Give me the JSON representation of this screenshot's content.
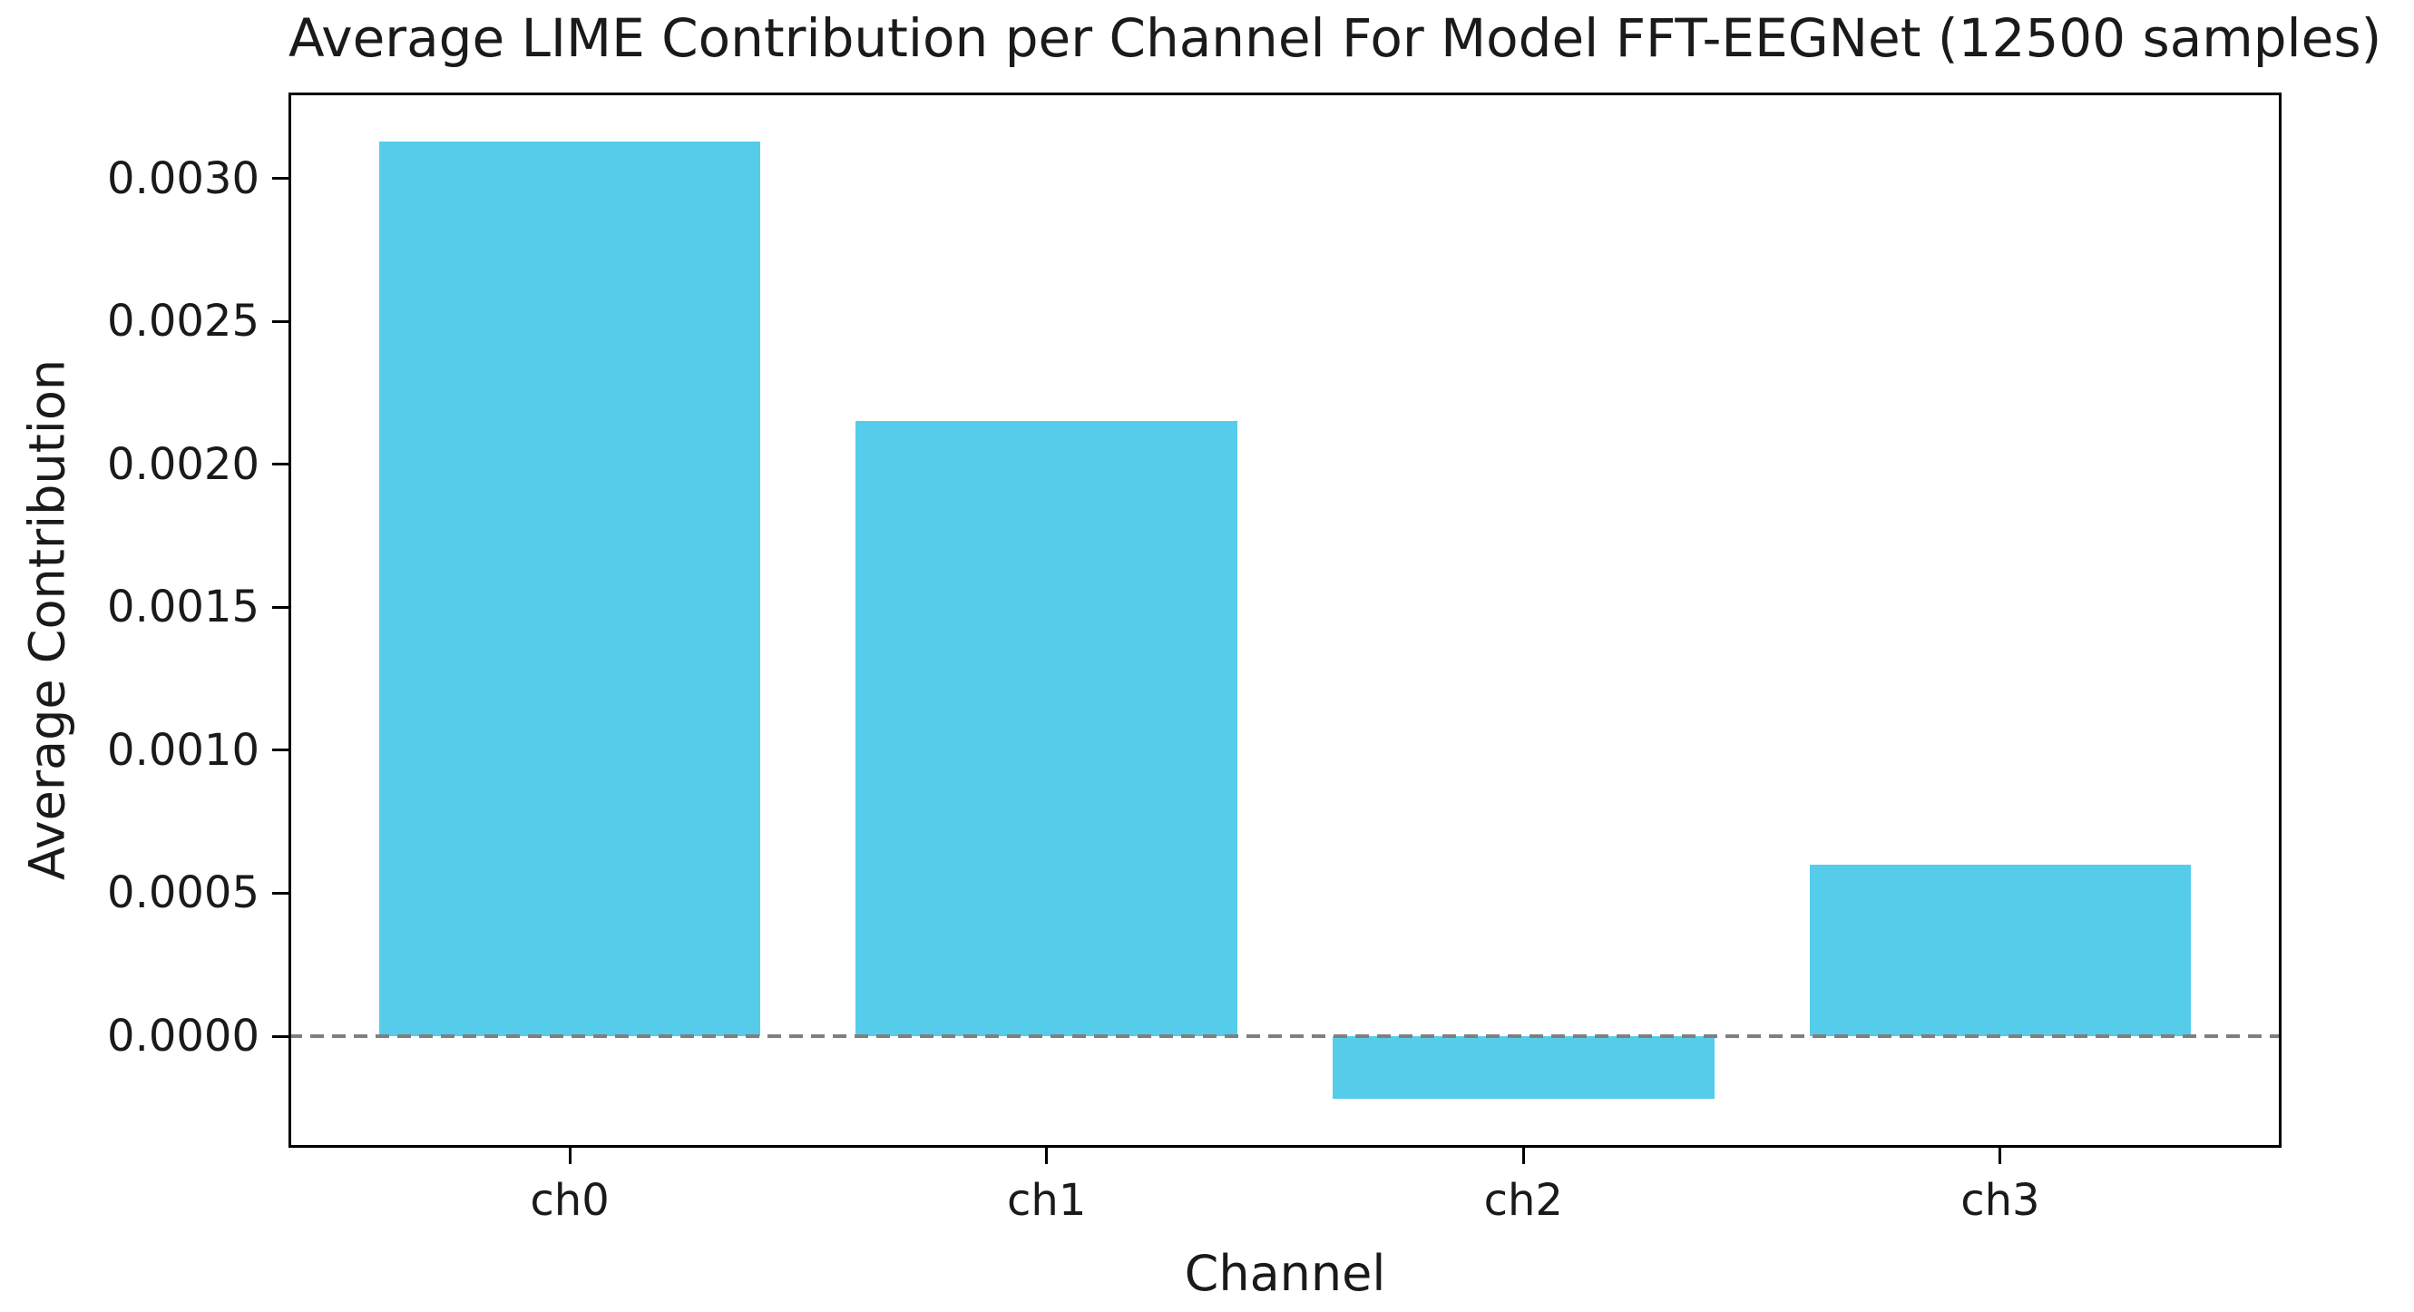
{
  "chart_data": {
    "type": "bar",
    "title": "Average LIME Contribution per Channel For Model FFT-EEGNet (12500 samples)",
    "xlabel": "Channel",
    "ylabel": "Average Contribution",
    "categories": [
      "ch0",
      "ch1",
      "ch2",
      "ch3"
    ],
    "values": [
      0.00313,
      0.00215,
      -0.00022,
      0.0006
    ],
    "bar_color": "#55CDEA",
    "bar_width_fraction": 0.8,
    "xlim": [
      -0.59,
      3.59
    ],
    "ylim": [
      -0.00039,
      0.0033
    ],
    "yticks": [
      0.0,
      0.0005,
      0.001,
      0.0015,
      0.002,
      0.0025,
      0.003
    ],
    "ytick_decimals": 4,
    "zero_line": {
      "value": 0,
      "color": "#7f7f7f",
      "dash": [
        15,
        9
      ],
      "thickness": 4
    },
    "grid": false,
    "legend": null,
    "spine_color": "#000000",
    "text_color": "#1a1a1a",
    "background_color": "#ffffff"
  }
}
